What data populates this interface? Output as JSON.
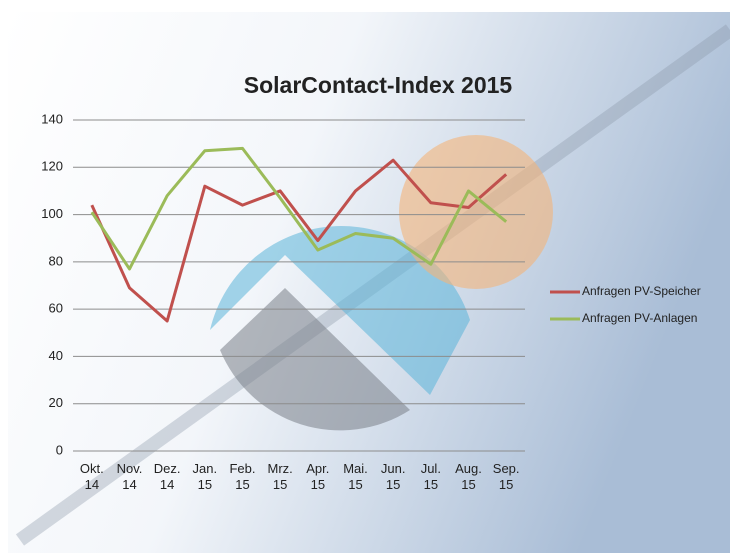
{
  "chart_data": {
    "type": "line",
    "title": "SolarContact-Index 2015",
    "categories": [
      "Okt.\n14",
      "Nov.\n14",
      "Dez.\n14",
      "Jan.\n15",
      "Feb.\n15",
      "Mrz.\n15",
      "Apr.\n15",
      "Mai.\n15",
      "Jun.\n15",
      "Jul.\n15",
      "Aug.\n15",
      "Sep.\n15"
    ],
    "series": [
      {
        "name": "Anfragen PV-Speicher",
        "color": "#c0504d",
        "values": [
          104,
          69,
          55,
          112,
          104,
          110,
          89,
          110,
          123,
          105,
          103,
          117
        ]
      },
      {
        "name": "Anfragen PV-Anlagen",
        "color": "#9bbb59",
        "values": [
          101,
          77,
          108,
          127,
          128,
          107,
          85,
          92,
          90,
          79,
          110,
          97
        ]
      }
    ],
    "ylim": [
      0,
      140
    ],
    "yticks": [
      0,
      20,
      40,
      60,
      80,
      100,
      120,
      140
    ],
    "grid": true,
    "legend": "right"
  }
}
